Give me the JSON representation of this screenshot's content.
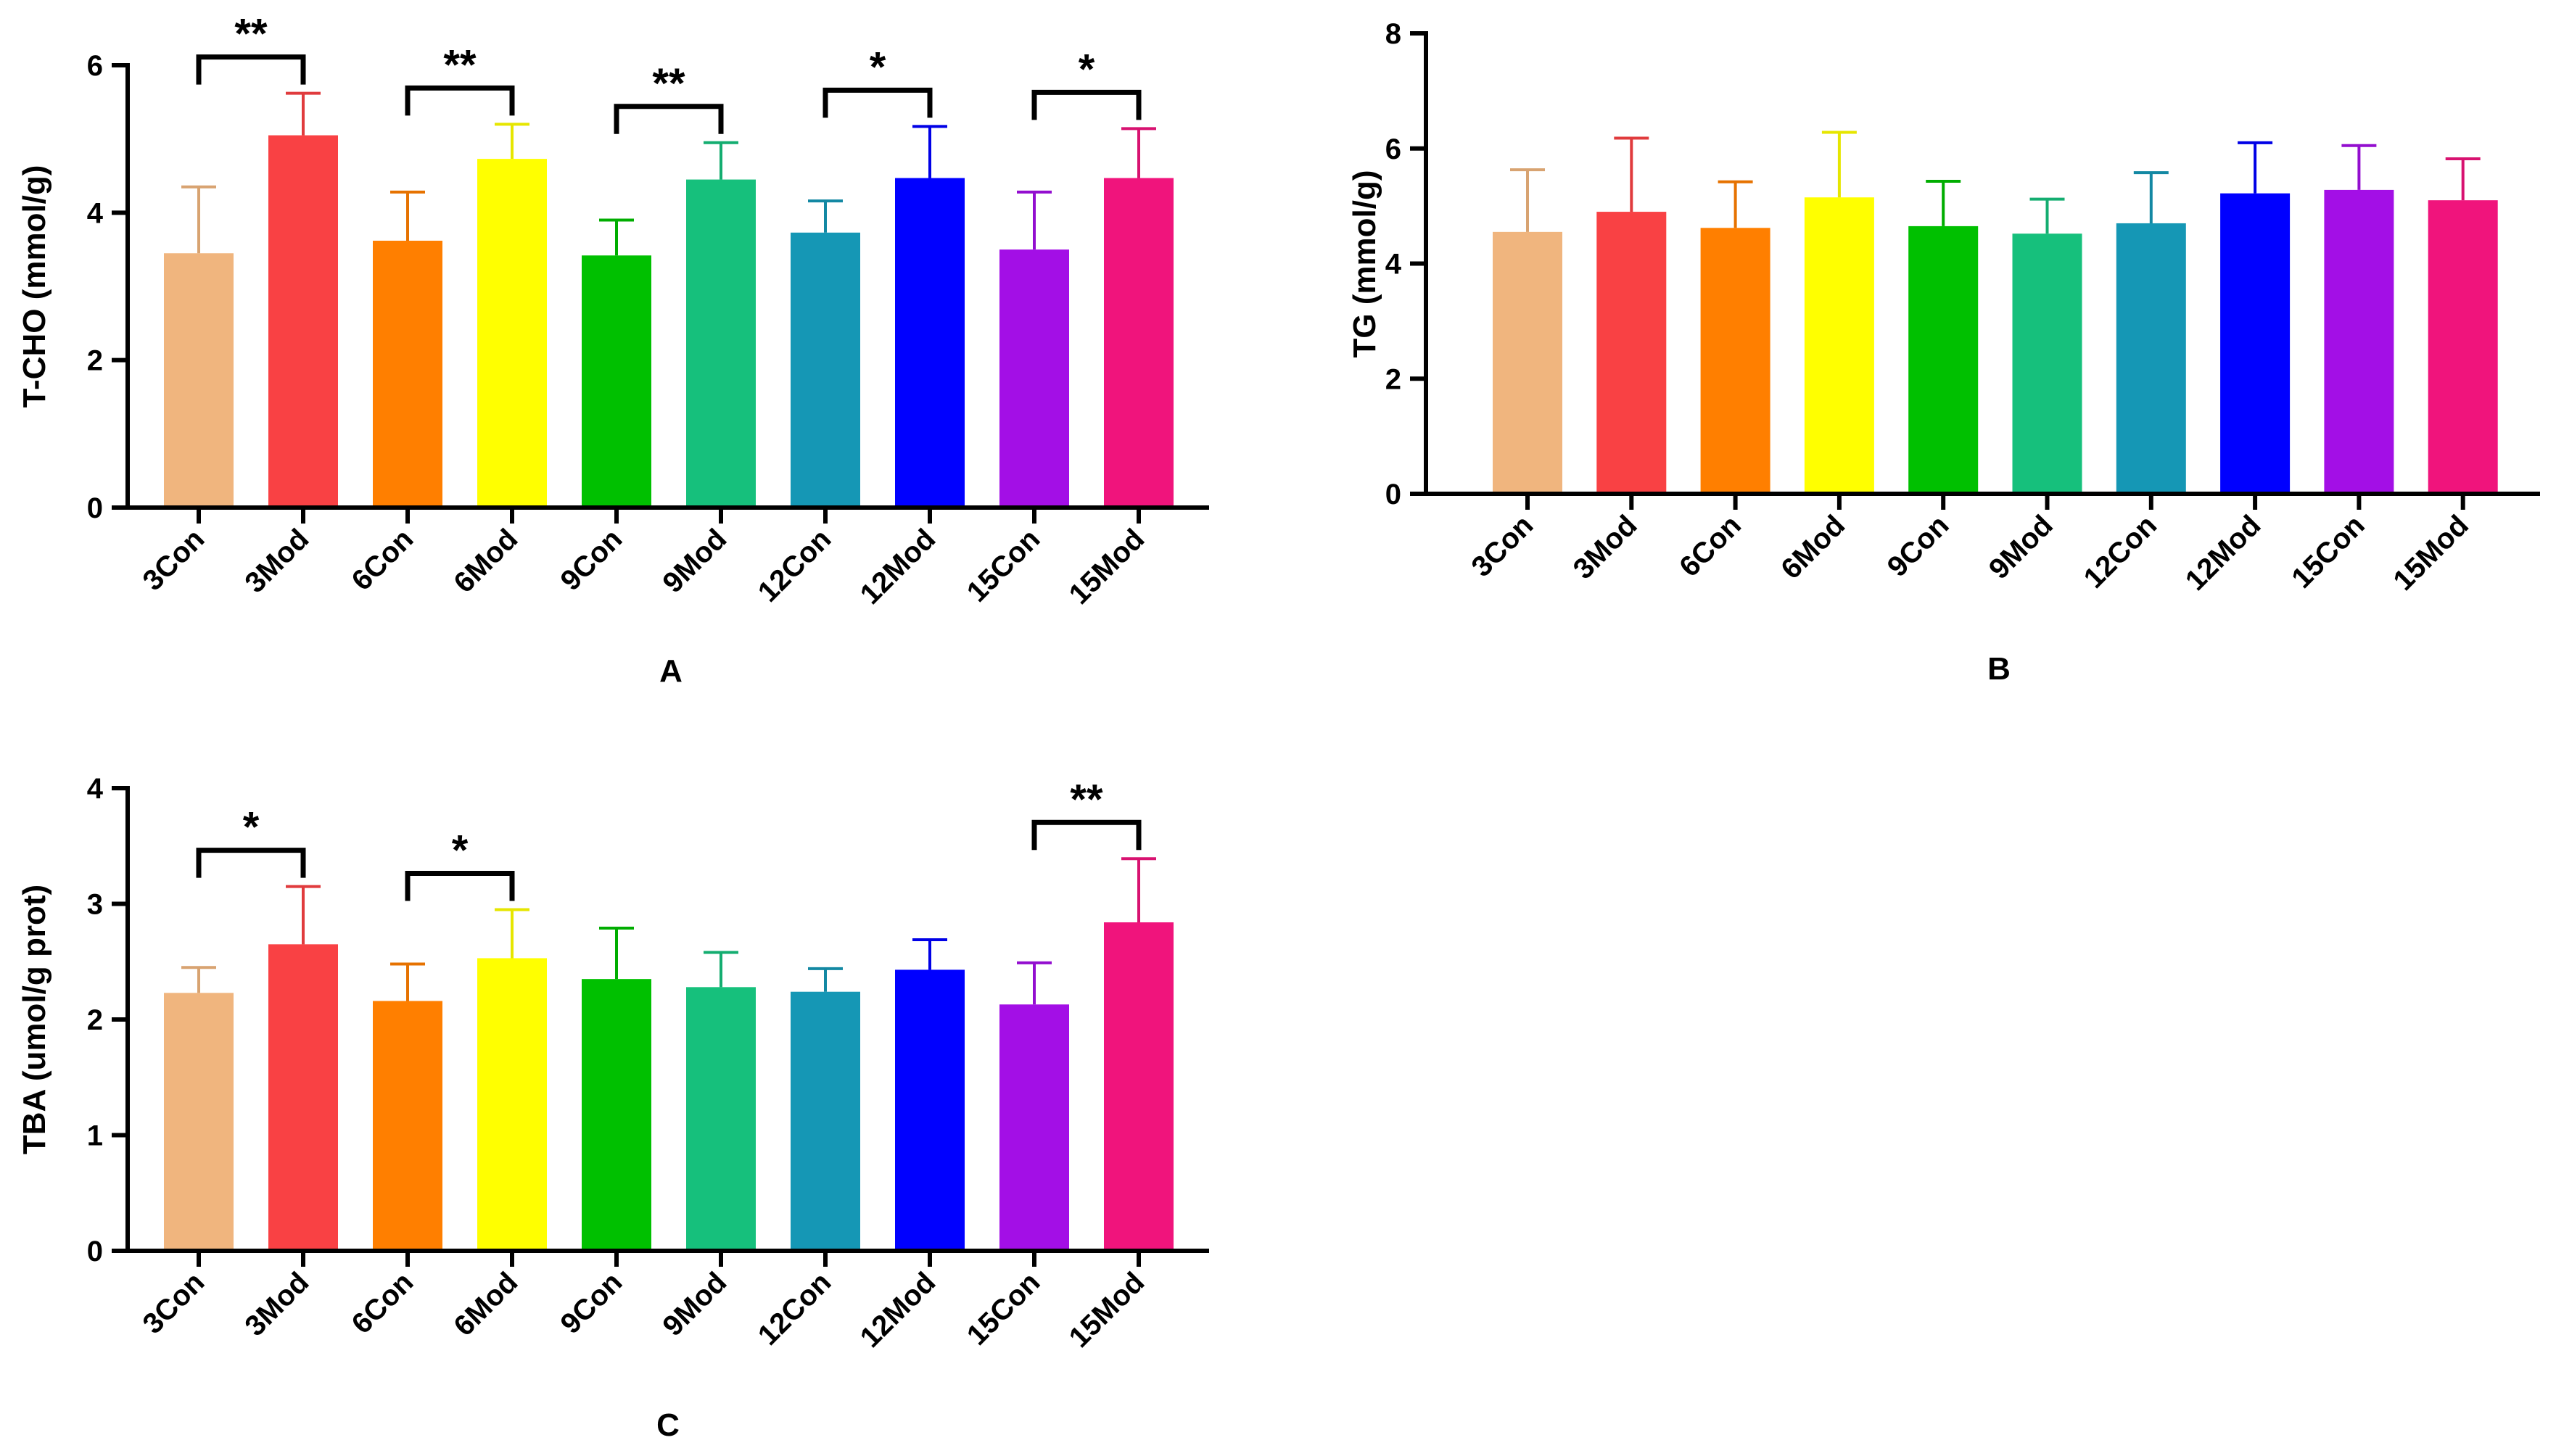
{
  "figure": {
    "panel_labels": [
      "A",
      "B",
      "C"
    ]
  },
  "chart_data": [
    {
      "type": "bar",
      "panel": "A",
      "ylabel": "T-CHO (mmol/g)",
      "ylim": [
        0,
        6
      ],
      "yticks": [
        0,
        2,
        4,
        6
      ],
      "categories": [
        "3Con",
        "3Mod",
        "6Con",
        "6Mod",
        "9Con",
        "9Mod",
        "12Con",
        "12Mod",
        "15Con",
        "15Mod"
      ],
      "colors": [
        "#f0b57e",
        "#f94144",
        "#ff7f00",
        "#ffff00",
        "#00c000",
        "#16c07c",
        "#1597b5",
        "#0000ff",
        "#a30fe6",
        "#f0147c"
      ],
      "values": [
        3.45,
        5.05,
        3.62,
        4.73,
        3.42,
        4.45,
        3.73,
        4.47,
        3.5,
        4.47
      ],
      "errors": [
        0.9,
        0.57,
        0.66,
        0.47,
        0.48,
        0.5,
        0.43,
        0.7,
        0.78,
        0.67
      ],
      "significance": [
        {
          "pair": [
            0,
            1
          ],
          "label": "**"
        },
        {
          "pair": [
            2,
            3
          ],
          "label": "**"
        },
        {
          "pair": [
            4,
            5
          ],
          "label": "**"
        },
        {
          "pair": [
            6,
            7
          ],
          "label": "*"
        },
        {
          "pair": [
            8,
            9
          ],
          "label": "*"
        }
      ]
    },
    {
      "type": "bar",
      "panel": "B",
      "ylabel": "TG (mmol/g)",
      "ylim": [
        0,
        8
      ],
      "yticks": [
        0,
        2,
        4,
        6,
        8
      ],
      "categories": [
        "3Con",
        "3Mod",
        "6Con",
        "6Mod",
        "9Con",
        "9Mod",
        "12Con",
        "12Mod",
        "15Con",
        "15Mod"
      ],
      "colors": [
        "#f0b57e",
        "#f94144",
        "#ff7f00",
        "#ffff00",
        "#00c000",
        "#16c07c",
        "#1597b5",
        "#0000ff",
        "#a30fe6",
        "#f0147c"
      ],
      "values": [
        4.55,
        4.9,
        4.62,
        5.15,
        4.65,
        4.52,
        4.7,
        5.22,
        5.28,
        5.1
      ],
      "errors": [
        1.08,
        1.28,
        0.8,
        1.13,
        0.78,
        0.6,
        0.88,
        0.88,
        0.77,
        0.72
      ],
      "significance": []
    },
    {
      "type": "bar",
      "panel": "C",
      "ylabel": "TBA (umol/g prot)",
      "ylim": [
        0,
        4
      ],
      "yticks": [
        0,
        1,
        2,
        3,
        4
      ],
      "categories": [
        "3Con",
        "3Mod",
        "6Con",
        "6Mod",
        "9Con",
        "9Mod",
        "12Con",
        "12Mod",
        "15Con",
        "15Mod"
      ],
      "colors": [
        "#f0b57e",
        "#f94144",
        "#ff7f00",
        "#ffff00",
        "#00c000",
        "#16c07c",
        "#1597b5",
        "#0000ff",
        "#a30fe6",
        "#f0147c"
      ],
      "values": [
        2.23,
        2.65,
        2.16,
        2.53,
        2.35,
        2.28,
        2.24,
        2.43,
        2.13,
        2.84
      ],
      "errors": [
        0.22,
        0.5,
        0.32,
        0.42,
        0.44,
        0.3,
        0.2,
        0.26,
        0.36,
        0.55
      ],
      "significance": [
        {
          "pair": [
            0,
            1
          ],
          "label": "*"
        },
        {
          "pair": [
            2,
            3
          ],
          "label": "*"
        },
        {
          "pair": [
            8,
            9
          ],
          "label": "**"
        }
      ]
    }
  ]
}
